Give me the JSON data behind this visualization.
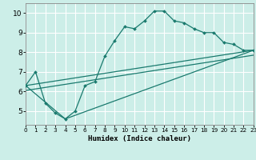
{
  "xlabel": "Humidex (Indice chaleur)",
  "bg_color": "#cceee8",
  "grid_color": "#ffffff",
  "line_color": "#1a7a6e",
  "xlim": [
    0,
    23
  ],
  "ylim": [
    4.3,
    10.5
  ],
  "xticks": [
    0,
    1,
    2,
    3,
    4,
    5,
    6,
    7,
    8,
    9,
    10,
    11,
    12,
    13,
    14,
    15,
    16,
    17,
    18,
    19,
    20,
    21,
    22,
    23
  ],
  "yticks": [
    5,
    6,
    7,
    8,
    9,
    10
  ],
  "main_x": [
    0,
    1,
    2,
    3,
    4,
    5,
    6,
    7,
    8,
    9,
    10,
    11,
    12,
    13,
    14,
    15,
    16,
    17,
    18,
    19,
    20,
    21,
    22,
    23
  ],
  "main_y": [
    6.3,
    7.0,
    5.4,
    4.9,
    4.6,
    5.0,
    6.3,
    6.5,
    7.8,
    8.6,
    9.3,
    9.2,
    9.6,
    10.1,
    10.1,
    9.6,
    9.5,
    9.2,
    9.0,
    9.0,
    8.5,
    8.4,
    8.1,
    8.1
  ],
  "line1_x": [
    0,
    23
  ],
  "line1_y": [
    6.3,
    8.1
  ],
  "line2_x": [
    0,
    23
  ],
  "line2_y": [
    6.05,
    7.85
  ],
  "line3_x": [
    0,
    4,
    23
  ],
  "line3_y": [
    6.3,
    4.6,
    8.1
  ]
}
